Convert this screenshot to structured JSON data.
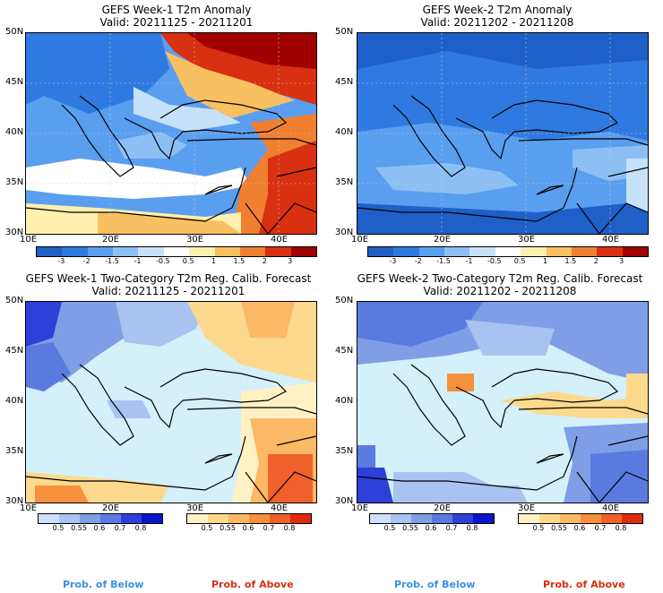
{
  "panels": {
    "tl": {
      "title": "GEFS Week-1 T2m Anomaly",
      "valid": "Valid: 20211125 - 20211201"
    },
    "tr": {
      "title": "GEFS Week-2 T2m Anomaly",
      "valid": "Valid: 20211202 - 20211208"
    },
    "bl": {
      "title": "GEFS Week-1 Two-Category T2m Reg. Calib. Forecast",
      "valid": "Valid: 20211125 - 20211201"
    },
    "br": {
      "title": "GEFS Week-2 Two-Category T2m Reg. Calib. Forecast",
      "valid": "Valid: 20211202 - 20211208"
    }
  },
  "lat_labels": [
    "50N",
    "45N",
    "40N",
    "35N",
    "30N"
  ],
  "lon_labels": [
    "10E",
    "20E",
    "30E",
    "40E"
  ],
  "anomaly_colorbar": {
    "labels": [
      "-3",
      "-2",
      "-1.5",
      "-1",
      "-0.5",
      "0.5",
      "1",
      "1.5",
      "2",
      "3"
    ],
    "colors": [
      "#1f5fc8",
      "#2f7ae0",
      "#5a9ef0",
      "#8cc0f4",
      "#c5e2fa",
      "#ffffff",
      "#fff0b0",
      "#f8c060",
      "#f08030",
      "#d83010",
      "#a00000"
    ]
  },
  "prob_below_bar": {
    "labels": [
      "0.5",
      "0.55",
      "0.6",
      "0.7",
      "0.8"
    ],
    "colors": [
      "#cfe0fb",
      "#a8c2f2",
      "#7f9ee6",
      "#5a7ae0",
      "#2d40d8",
      "#0a14c8"
    ]
  },
  "prob_above_bar": {
    "labels": [
      "0.5",
      "0.55",
      "0.6",
      "0.7",
      "0.8"
    ],
    "colors": [
      "#fff1c4",
      "#fcd98d",
      "#fbb865",
      "#f6903c",
      "#f0602a",
      "#e02a10"
    ]
  },
  "footer": {
    "below": "Prob. of Below",
    "above": "Prob. of Above"
  },
  "colors": {
    "below_text": "#3a8fe0",
    "above_text": "#d83010"
  }
}
